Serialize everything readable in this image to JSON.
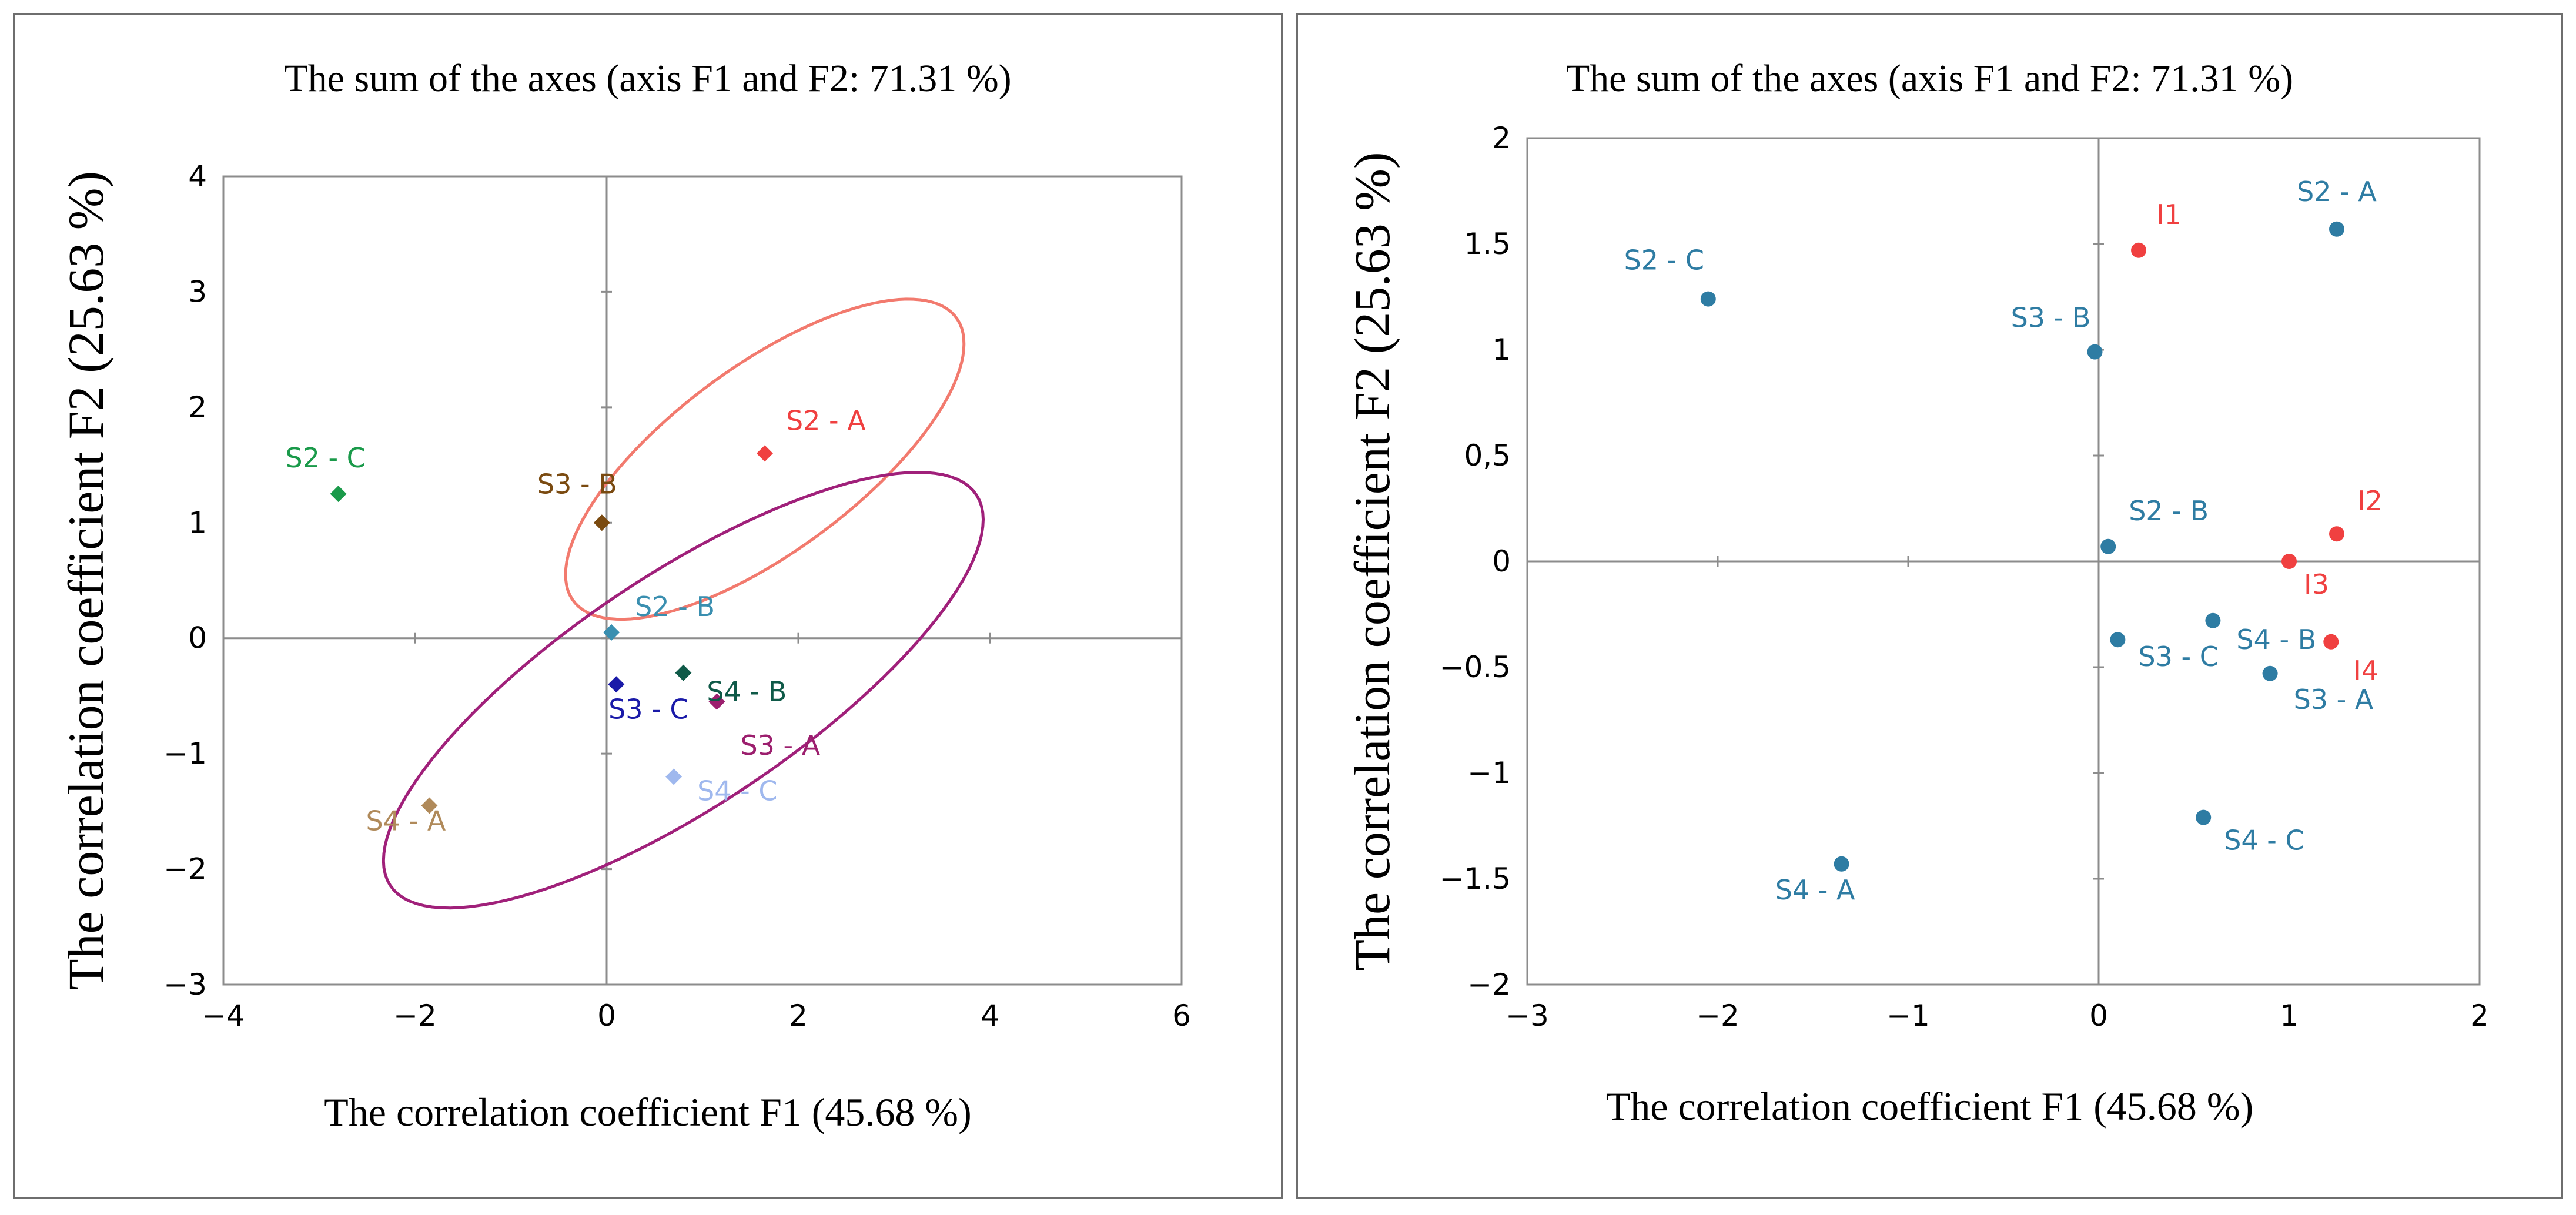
{
  "chart_data": [
    {
      "type": "scatter",
      "title": "The sum of the axes (axis F1 and F2: 71.31 %)",
      "xlabel": "The correlation coefficient F1 (45.68 %)",
      "ylabel": "The correlation coefficient F2 (25.63 %)",
      "xlim": [
        -4,
        6
      ],
      "ylim": [
        -3,
        4
      ],
      "xticks": [
        -4,
        -2,
        0,
        2,
        4,
        6
      ],
      "yticks": [
        -3,
        -2,
        -1,
        0,
        1,
        2,
        3,
        4
      ],
      "xtick_labels": [
        "−4",
        "−2",
        "0",
        "2",
        "4",
        "6"
      ],
      "ytick_labels": [
        "−3",
        "−2",
        "−1",
        "0",
        "1",
        "2",
        "3",
        "4"
      ],
      "grid": false,
      "marker": "diamond",
      "points": [
        {
          "label": "S2 - A",
          "x": 1.65,
          "y": 1.6,
          "color": "#f04040"
        },
        {
          "label": "S2 - B",
          "x": 0.05,
          "y": 0.05,
          "color": "#3a8fb0"
        },
        {
          "label": "S2 - C",
          "x": -2.8,
          "y": 1.25,
          "color": "#1a9a4a"
        },
        {
          "label": "S3 - A",
          "x": 1.15,
          "y": -0.55,
          "color": "#9c1f6e"
        },
        {
          "label": "S3 - B",
          "x": -0.05,
          "y": 1.0,
          "color": "#7a4a10"
        },
        {
          "label": "S3 - C",
          "x": 0.1,
          "y": -0.4,
          "color": "#1a1aa8"
        },
        {
          "label": "S4 - A",
          "x": -1.85,
          "y": -1.45,
          "color": "#b08a5a"
        },
        {
          "label": "S4 - B",
          "x": 0.8,
          "y": -0.3,
          "color": "#0f5a48"
        },
        {
          "label": "S4 - C",
          "x": 0.7,
          "y": -1.2,
          "color": "#9fb8ee"
        }
      ],
      "ellipses": [
        {
          "cx": 1.65,
          "cy": 1.55,
          "rx": 2.35,
          "ry": 0.85,
          "angle_deg": 30,
          "color": "#f27a6e"
        },
        {
          "cx": 0.8,
          "cy": -0.45,
          "rx": 3.5,
          "ry": 1.05,
          "angle_deg": 28,
          "color": "#a0207a"
        }
      ]
    },
    {
      "type": "scatter",
      "title": "The sum of the axes (axis F1 and F2: 71.31 %)",
      "xlabel": "The correlation coefficient F1 (45.68 %)",
      "ylabel": "The correlation coefficient F2 (25.63 %)",
      "xlim": [
        -3,
        2
      ],
      "ylim": [
        -2,
        2
      ],
      "xticks": [
        -3,
        -2,
        -1,
        0,
        1,
        2
      ],
      "yticks": [
        -2,
        -1.5,
        -1,
        -0.5,
        0,
        0.5,
        1,
        1.5,
        2
      ],
      "xtick_labels": [
        "−3",
        "−2",
        "−1",
        "0",
        "1",
        "2"
      ],
      "ytick_labels": [
        "−2",
        "−1.5",
        "−1",
        "−0.5",
        "0",
        "0,5",
        "1",
        "1.5",
        "2"
      ],
      "grid": false,
      "marker": "circle",
      "points": [
        {
          "label": "S2 - A",
          "x": 1.25,
          "y": 1.57,
          "color": "#2e7ca3"
        },
        {
          "label": "S2 - B",
          "x": 0.05,
          "y": 0.07,
          "color": "#2e7ca3"
        },
        {
          "label": "S2 - C",
          "x": -2.05,
          "y": 1.24,
          "color": "#2e7ca3"
        },
        {
          "label": "S3 - A",
          "x": 0.9,
          "y": -0.53,
          "color": "#2e7ca3"
        },
        {
          "label": "S3 - B",
          "x": -0.02,
          "y": 0.99,
          "color": "#2e7ca3"
        },
        {
          "label": "S3 - C",
          "x": 0.1,
          "y": -0.37,
          "color": "#2e7ca3"
        },
        {
          "label": "S4 - A",
          "x": -1.35,
          "y": -1.43,
          "color": "#2e7ca3"
        },
        {
          "label": "S4 - B",
          "x": 0.6,
          "y": -0.28,
          "color": "#2e7ca3"
        },
        {
          "label": "S4 - C",
          "x": 0.55,
          "y": -1.21,
          "color": "#2e7ca3"
        },
        {
          "label": "I1",
          "x": 0.21,
          "y": 1.47,
          "color": "#f04040"
        },
        {
          "label": "I2",
          "x": 1.25,
          "y": 0.13,
          "color": "#f04040"
        },
        {
          "label": "I3",
          "x": 1.0,
          "y": 0.0,
          "color": "#f04040"
        },
        {
          "label": "I4",
          "x": 1.22,
          "y": -0.38,
          "color": "#f04040"
        }
      ]
    }
  ]
}
